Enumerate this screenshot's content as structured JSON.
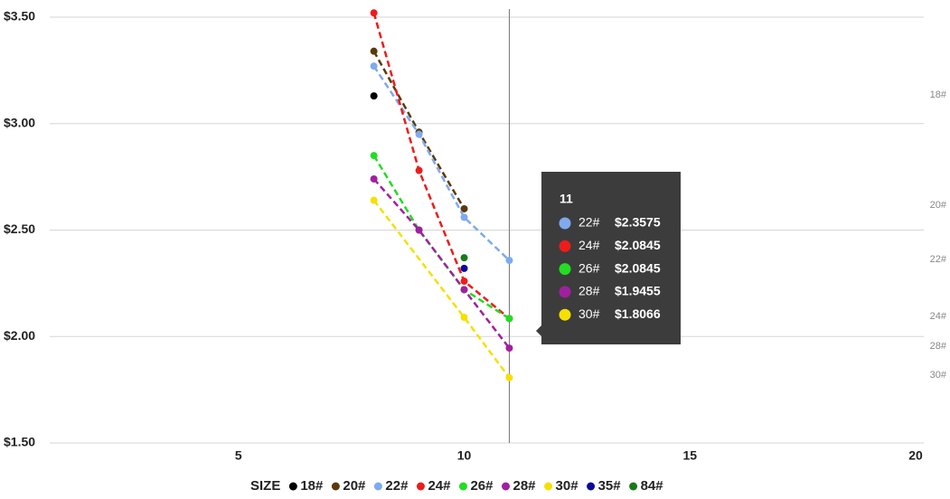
{
  "chart_data": {
    "type": "line",
    "xlim": [
      1,
      20
    ],
    "xticks": [
      5,
      10,
      15,
      20
    ],
    "ylim": [
      1.5,
      3.5
    ],
    "yticks": [
      {
        "value": 1.5,
        "label": "$1.50"
      },
      {
        "value": 2,
        "label": "$2.00"
      },
      {
        "value": 2.5,
        "label": "$2.50"
      },
      {
        "value": 3,
        "label": "$3.00"
      },
      {
        "value": 3.5,
        "label": "$3.50"
      }
    ],
    "grid": true,
    "cursor_x": 11,
    "legend_title": "SIZE",
    "series": [
      {
        "name": "18#",
        "color": "#000000",
        "dashed": false,
        "x": [
          8
        ],
        "values": [
          3.13
        ]
      },
      {
        "name": "20#",
        "color": "#5a3a0a",
        "dashed": true,
        "x": [
          8,
          9,
          10
        ],
        "values": [
          3.34,
          2.96,
          2.6
        ]
      },
      {
        "name": "22#",
        "color": "#7faaee",
        "dashed": true,
        "x": [
          8,
          9,
          10,
          11
        ],
        "values": [
          3.27,
          2.95,
          2.56,
          2.3575
        ]
      },
      {
        "name": "24#",
        "color": "#ee1c1c",
        "dashed": true,
        "x": [
          8,
          9,
          10,
          11
        ],
        "values": [
          3.52,
          2.78,
          2.26,
          2.0845
        ]
      },
      {
        "name": "26#",
        "color": "#22dd22",
        "dashed": true,
        "x": [
          8,
          9,
          10,
          11
        ],
        "values": [
          2.85,
          2.5,
          2.22,
          2.0845
        ]
      },
      {
        "name": "28#",
        "color": "#a020a0",
        "dashed": true,
        "x": [
          8,
          9,
          10,
          11
        ],
        "values": [
          2.74,
          2.5,
          2.22,
          1.9455
        ]
      },
      {
        "name": "30#",
        "color": "#f5e000",
        "dashed": true,
        "x": [
          8,
          10,
          11
        ],
        "values": [
          2.64,
          2.09,
          1.8066
        ]
      },
      {
        "name": "35#",
        "color": "#0a0a9a",
        "dashed": false,
        "x": [
          10
        ],
        "values": [
          2.32
        ]
      },
      {
        "name": "84#",
        "color": "#1a7a1a",
        "dashed": false,
        "x": [
          10
        ],
        "values": [
          2.37
        ]
      }
    ],
    "end_labels": [
      "18#",
      "20#",
      "22#",
      "24#",
      "28#",
      "30#"
    ],
    "tooltip": {
      "title": "11",
      "items": [
        {
          "name": "22#",
          "value": "$2.3575",
          "color": "#7faaee"
        },
        {
          "name": "24#",
          "value": "$2.0845",
          "color": "#ee1c1c"
        },
        {
          "name": "26#",
          "value": "$2.0845",
          "color": "#22dd22"
        },
        {
          "name": "28#",
          "value": "$1.9455",
          "color": "#a020a0"
        },
        {
          "name": "30#",
          "value": "$1.8066",
          "color": "#f5e000"
        }
      ]
    }
  }
}
